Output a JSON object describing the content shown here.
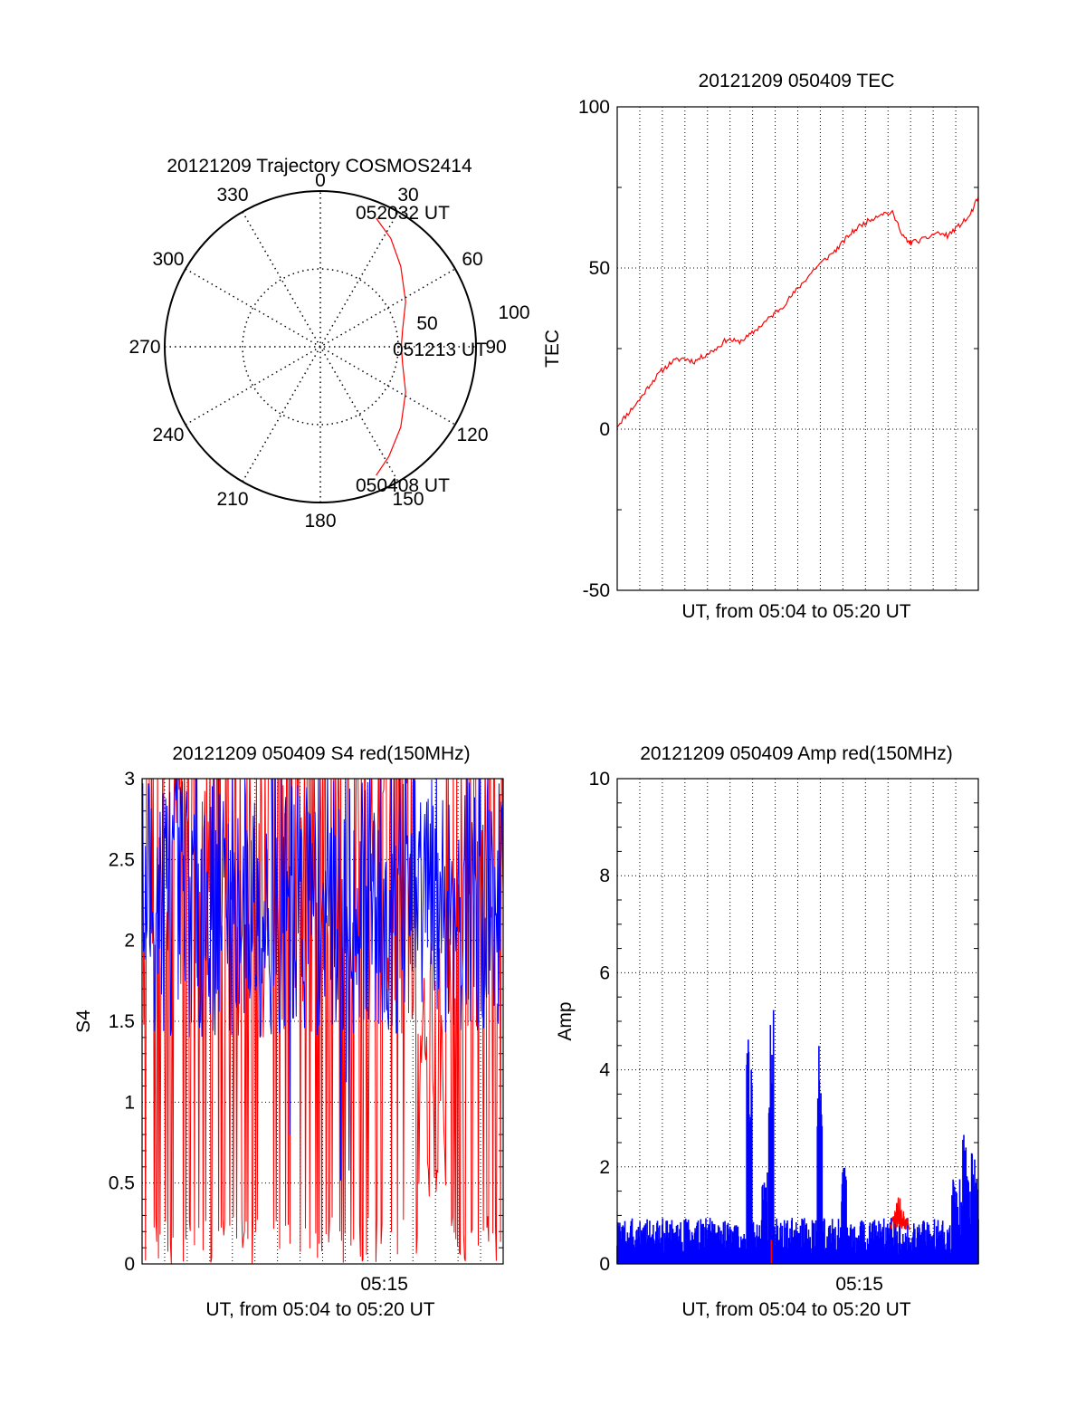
{
  "chart_data": [
    {
      "type": "polar",
      "title": "20121209 Trajectory COSMOS2414",
      "azimuth_labels": [
        "0",
        "30",
        "60",
        "90",
        "120",
        "150",
        "180",
        "210",
        "240",
        "270",
        "300",
        "330"
      ],
      "radial_labels": [
        "50",
        "100"
      ],
      "radial_max": 100,
      "start_label": "050408 UT",
      "mid_label": "051213 UT",
      "end_label": "052032 UT",
      "trajectory": {
        "azimuth_deg": [
          156.5,
          148,
          135,
          118,
          102,
          90,
          78,
          62,
          45,
          33,
          23.5
        ],
        "radius": [
          90,
          83,
          73,
          62,
          54,
          52,
          54,
          62,
          73,
          83,
          90
        ]
      },
      "trajectory_color": "#ff0000"
    },
    {
      "type": "line",
      "title": "20121209 050409 TEC",
      "xlabel": "UT, from 05:04 to 05:20 UT",
      "ylabel": "TEC",
      "ylim": [
        -50,
        100
      ],
      "yticks": [
        "100",
        "50",
        "0",
        "-50"
      ],
      "xlim": [
        0,
        16.4
      ],
      "series": [
        {
          "color": "#ff0000",
          "x": [
            0,
            0.5,
            1,
            1.5,
            2,
            2.5,
            3,
            3.5,
            4,
            4.5,
            5,
            5.5,
            6,
            6.5,
            7,
            7.5,
            8,
            8.5,
            9,
            9.5,
            10,
            10.5,
            11,
            11.5,
            12,
            12.5,
            13,
            13.2,
            13.4,
            14,
            14.5,
            15,
            15.5,
            16,
            16.4
          ],
          "y": [
            1,
            5,
            9,
            14,
            18,
            21,
            22,
            21,
            23,
            25,
            28,
            27,
            29,
            32,
            35,
            38,
            42,
            46,
            50,
            53,
            56,
            60,
            63,
            65,
            67,
            67,
            60,
            58,
            58,
            59,
            61,
            60,
            63,
            66,
            72
          ]
        }
      ]
    },
    {
      "type": "line",
      "title": "20121209 050409 S4 red(150MHz)",
      "xlabel": "UT, from 05:04 to 05:20 UT",
      "ylabel": "S4",
      "ylim": [
        0,
        3
      ],
      "yticks": [
        "3",
        "2.5",
        "2",
        "1.5",
        "1",
        "0.5",
        "0"
      ],
      "xtick_label": "05:15",
      "xtick_pos": 11,
      "xlim": [
        0,
        16.4
      ],
      "series": [
        {
          "color": "#ff0000"
        },
        {
          "color": "#0000ff"
        }
      ]
    },
    {
      "type": "line",
      "title": "20121209 050409 Amp red(150MHz)",
      "xlabel": "UT, from 05:04 to 05:20 UT",
      "ylabel": "Amp",
      "ylim": [
        0,
        10
      ],
      "yticks": [
        "10",
        "8",
        "6",
        "4",
        "2",
        "0"
      ],
      "xtick_label": "05:15",
      "xtick_pos": 11,
      "xlim": [
        0,
        16.4
      ],
      "series": [
        {
          "color": "#0000ff",
          "peaks": [
            {
              "x": 6.0,
              "y": 4.7
            },
            {
              "x": 7.0,
              "y": 5.3
            },
            {
              "x": 9.2,
              "y": 4.6
            },
            {
              "x": 6.7,
              "y": 1.9
            },
            {
              "x": 10.3,
              "y": 2.0
            },
            {
              "x": 15.8,
              "y": 2.7
            },
            {
              "x": 16.2,
              "y": 2.3
            }
          ]
        },
        {
          "color": "#ff0000",
          "peaks": [
            {
              "x": 12.8,
              "y": 1.5
            },
            {
              "x": 7.0,
              "y": 0.5
            }
          ]
        }
      ]
    }
  ]
}
